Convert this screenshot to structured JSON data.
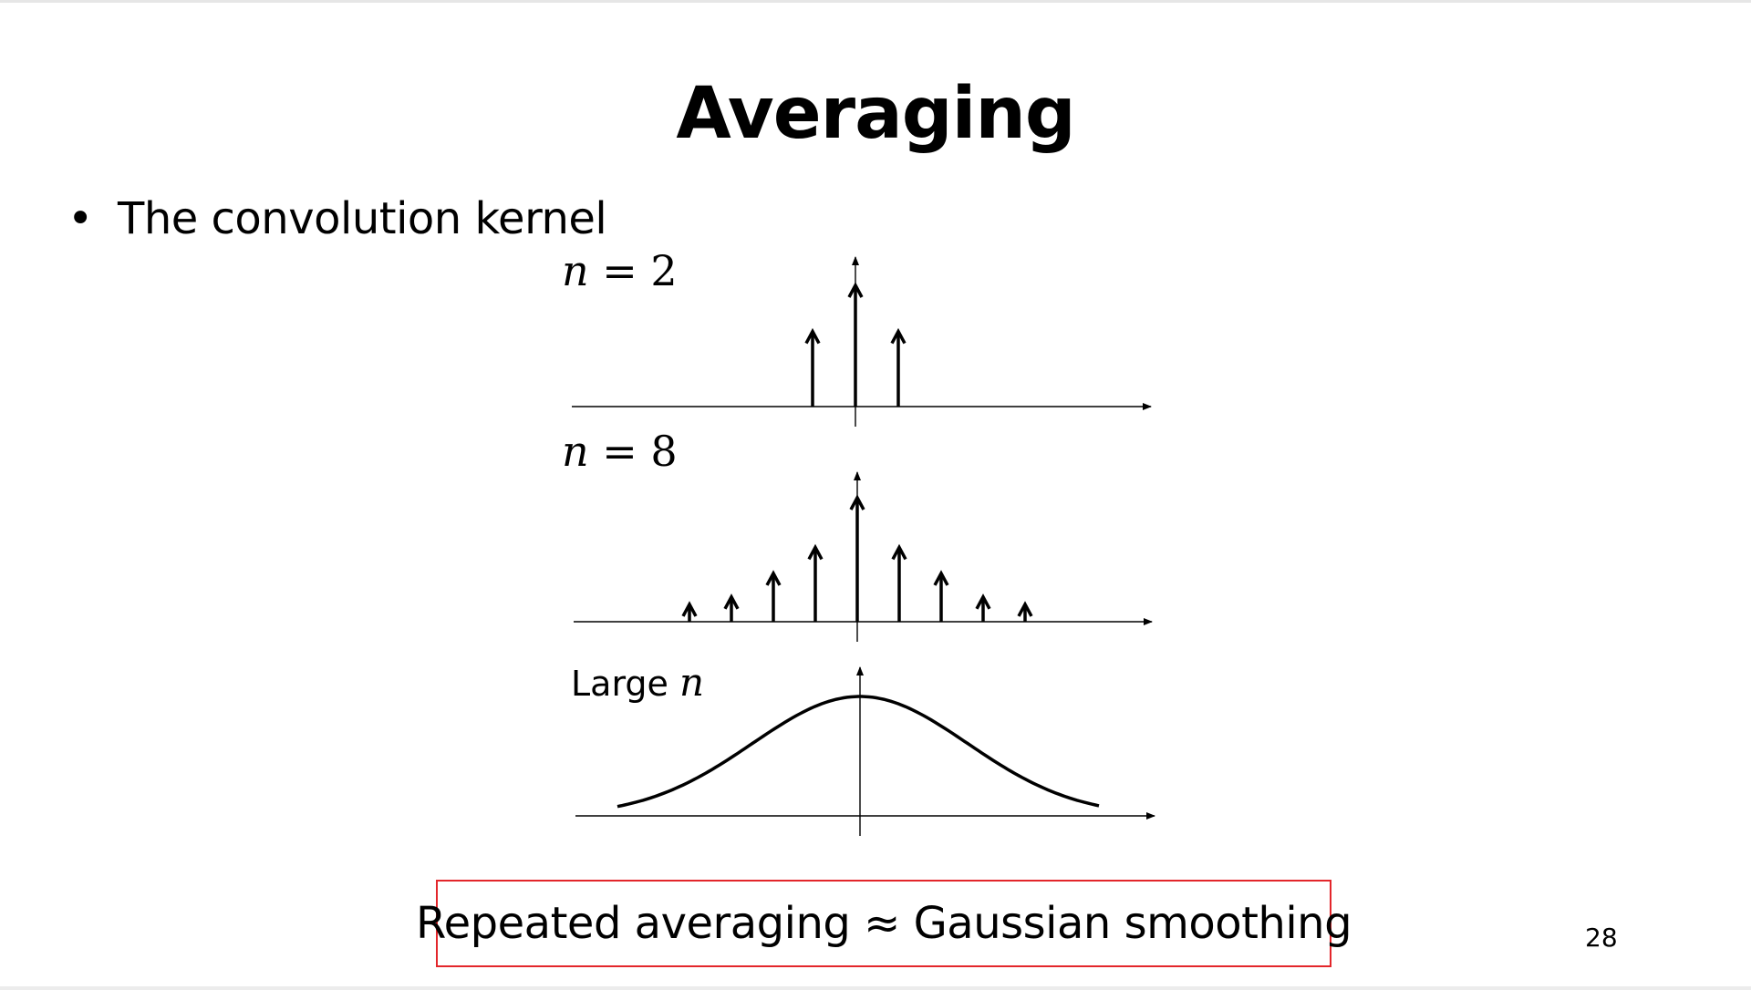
{
  "slide": {
    "title": "Averaging",
    "bullet": "The convolution kernel",
    "callout": "Repeated averaging ≈ Gaussian smoothing",
    "page_number": "28",
    "callout_border_color": "#e3262b"
  },
  "panels": [
    {
      "label_var": "n",
      "label_rest": " = 2",
      "type": "impulses",
      "relative_heights": [
        0.62,
        1.0,
        0.62
      ]
    },
    {
      "label_var": "n",
      "label_rest": " = 8",
      "type": "impulses",
      "relative_heights": [
        0.14,
        0.2,
        0.39,
        0.6,
        1.0,
        0.6,
        0.39,
        0.2,
        0.14
      ]
    },
    {
      "label_text": "Large ",
      "label_var": "n",
      "type": "gaussian-curve"
    }
  ]
}
